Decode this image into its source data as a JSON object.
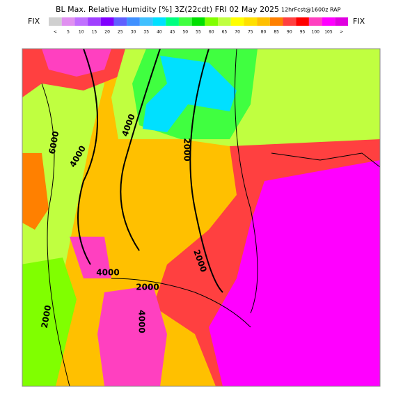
{
  "header": {
    "title": "BL Max. Relative Humidity [%] 3Z(22cdt) FRI 02 May 2025",
    "forecast": "12hrFcst@1600z RAP"
  },
  "colorbar": {
    "fix_left": "FIX",
    "fix_right": "FIX",
    "labels": [
      "<",
      "5",
      "10",
      "15",
      "20",
      "25",
      "30",
      "35",
      "40",
      "45",
      "50",
      "55",
      "60",
      "65",
      "70",
      "75",
      "80",
      "85",
      "90",
      "95",
      "100",
      "105",
      ">"
    ],
    "colors": [
      "#d0d0d0",
      "#e090f0",
      "#c070ff",
      "#a040ff",
      "#8000ff",
      "#6060ff",
      "#4090ff",
      "#40c0ff",
      "#00e0ff",
      "#00ff80",
      "#40ff40",
      "#00e000",
      "#80ff00",
      "#c0ff40",
      "#ffff00",
      "#ffe000",
      "#ffc000",
      "#ff8000",
      "#ff4040",
      "#ff0000",
      "#ff40c0",
      "#ff00ff",
      "#e000e0"
    ]
  },
  "contour_labels": [
    "4000",
    "2000",
    "6000",
    "4000",
    "4000",
    "2000",
    "2000",
    "2000",
    "4000"
  ]
}
